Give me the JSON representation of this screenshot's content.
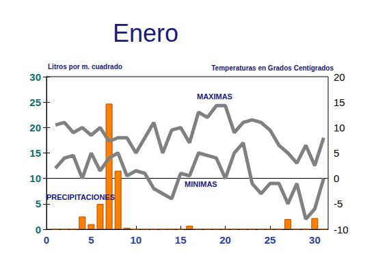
{
  "chart_data": {
    "type": "combo",
    "title": "Enero",
    "ylabel": "Litros por m. cuadrado",
    "y2label": "Temperaturas en Grados Centígrados",
    "x": [
      1,
      2,
      3,
      4,
      5,
      6,
      7,
      8,
      9,
      10,
      11,
      12,
      13,
      14,
      15,
      16,
      17,
      18,
      19,
      20,
      21,
      22,
      23,
      24,
      25,
      26,
      27,
      28,
      29,
      30,
      31
    ],
    "xlim": [
      0,
      31.5
    ],
    "xticks": [
      0,
      5,
      10,
      15,
      20,
      25,
      30
    ],
    "ylim": [
      0,
      30
    ],
    "yticks": [
      0,
      5,
      10,
      15,
      20,
      25,
      30
    ],
    "y2lim": [
      -10,
      20
    ],
    "y2ticks": [
      -10,
      -5,
      0,
      5,
      10,
      15,
      20
    ],
    "grid": false,
    "series": [
      {
        "name": "PRECIPITACIONES",
        "type": "bar",
        "color": "#ff8000",
        "values": [
          0,
          0,
          0,
          2.5,
          1,
          5,
          24.7,
          11.5,
          0.3,
          0,
          0,
          0,
          0,
          0,
          0,
          0.7,
          0,
          0,
          0,
          0,
          0,
          0,
          0,
          0,
          0,
          0,
          2,
          0,
          0,
          2.2,
          0
        ]
      },
      {
        "name": "MAXIMAS",
        "type": "line",
        "axis": "y2",
        "color": "#808080",
        "values": [
          10.5,
          11,
          9,
          10,
          8.5,
          10,
          7.3,
          8,
          8,
          5,
          8,
          11,
          5,
          9.5,
          10,
          7,
          13,
          12,
          14.3,
          14.3,
          9,
          11,
          11.5,
          11,
          9.5,
          6.5,
          5,
          3,
          6.5,
          2.5,
          8
        ]
      },
      {
        "name": "MINIMAS",
        "type": "line",
        "axis": "y2",
        "color": "#808080",
        "values": [
          2,
          4,
          4.5,
          0,
          5,
          1.5,
          4,
          5,
          0.5,
          1.5,
          1,
          -2,
          -3,
          -4,
          1,
          0.5,
          5,
          4.5,
          4,
          0,
          5,
          7,
          -1,
          -3,
          -1,
          -1,
          -5,
          -1,
          -8,
          -6,
          0
        ]
      }
    ]
  }
}
